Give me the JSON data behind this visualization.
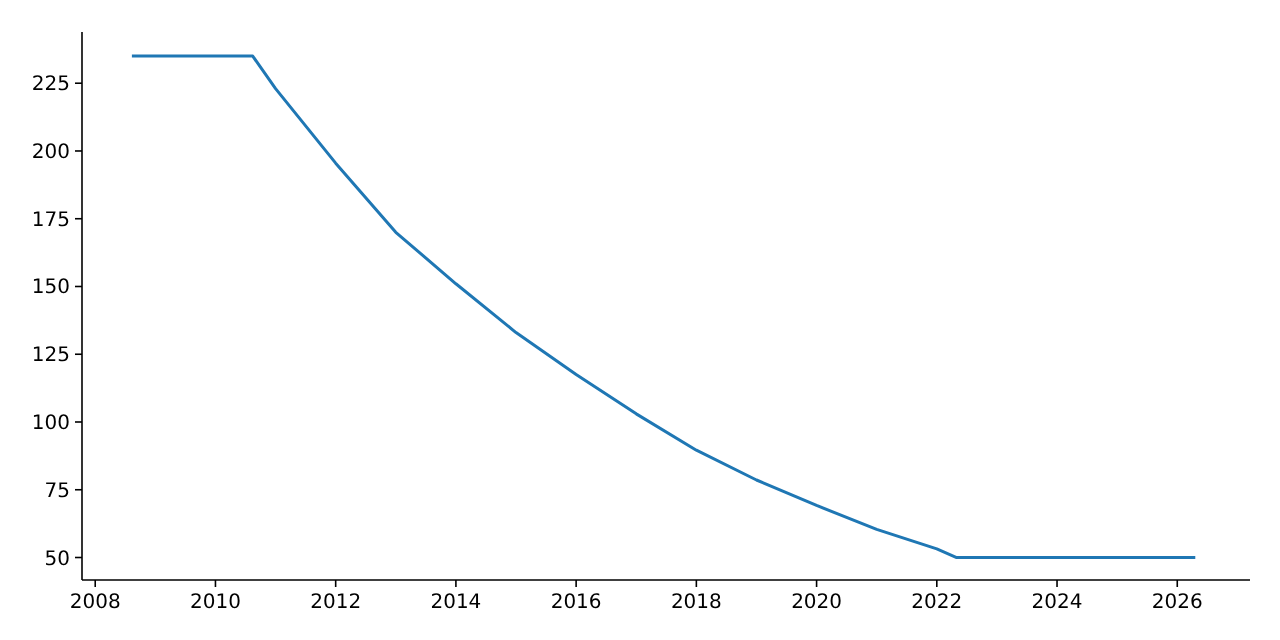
{
  "chart_data": {
    "type": "line",
    "x": [
      2008.61,
      2010.62,
      2011,
      2012,
      2013,
      2014,
      2015,
      2016,
      2017,
      2018,
      2019,
      2020,
      2021,
      2022,
      2022.33,
      2026.3
    ],
    "series": [
      {
        "color": "#1f77b4",
        "values": [
          235,
          235,
          223,
          195.5,
          170,
          151,
          133,
          117.5,
          103,
          89.6,
          78.6,
          69.2,
          60.4,
          53.2,
          50,
          50
        ]
      }
    ],
    "xlim": [
      2007.78,
      2027.21
    ],
    "ylim": [
      41.7,
      243.9
    ],
    "xticks": [
      2008,
      2010,
      2012,
      2014,
      2016,
      2018,
      2020,
      2022,
      2024,
      2026
    ],
    "yticks": [
      50,
      75,
      100,
      125,
      150,
      175,
      200,
      225
    ]
  }
}
